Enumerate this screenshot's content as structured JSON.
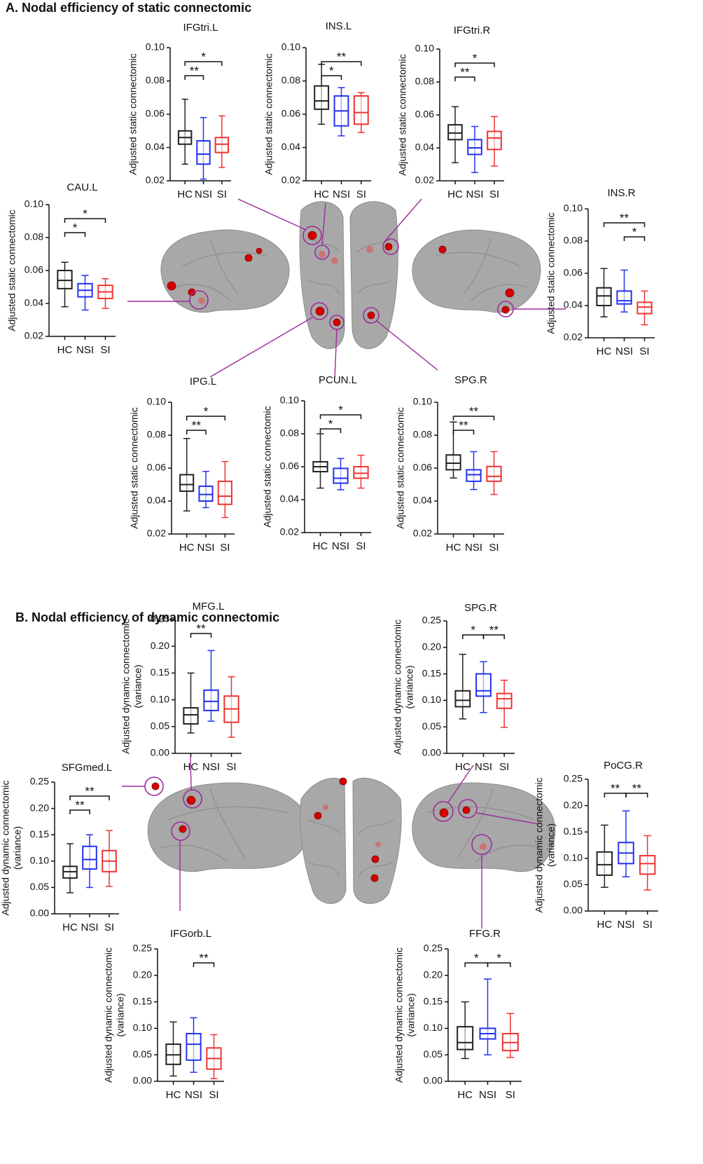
{
  "sections": [
    "A. Nodal efficiency of static connectomic",
    "B. Nodal efficiency of dynamic connectomic"
  ],
  "chart_data": [
    {
      "type": "box",
      "title": "IFGtri.L",
      "ylabel": [
        "Adjusted static connectomic"
      ],
      "categories": [
        "HC",
        "NSI",
        "SI"
      ],
      "colors": [
        "#222222",
        "#2233ee",
        "#ee3333"
      ],
      "boxes": [
        {
          "min": 0.03,
          "q1": 0.042,
          "median": 0.046,
          "q3": 0.05,
          "max": 0.069
        },
        {
          "min": 0.021,
          "q1": 0.03,
          "median": 0.036,
          "q3": 0.044,
          "max": 0.058
        },
        {
          "min": 0.028,
          "q1": 0.037,
          "median": 0.042,
          "q3": 0.046,
          "max": 0.059
        }
      ],
      "ylim": [
        0.02,
        0.1
      ],
      "yticks": [
        0.02,
        0.04,
        0.06,
        0.08,
        {
          "value": 0.1,
          "label": "0.10"
        }
      ],
      "annotations": [
        {
          "groups": [
            0,
            1
          ],
          "label": "**"
        },
        {
          "groups": [
            0,
            2
          ],
          "label": "*"
        }
      ]
    },
    {
      "type": "box",
      "title": "INS.L",
      "ylabel": [
        "Adjusted static connectomic"
      ],
      "categories": [
        "HC",
        "NSI",
        "SI"
      ],
      "colors": [
        "#222222",
        "#2233ee",
        "#ee3333"
      ],
      "boxes": [
        {
          "min": 0.054,
          "q1": 0.063,
          "median": 0.068,
          "q3": 0.077,
          "max": 0.09
        },
        {
          "min": 0.047,
          "q1": 0.053,
          "median": 0.062,
          "q3": 0.071,
          "max": 0.076
        },
        {
          "min": 0.049,
          "q1": 0.054,
          "median": 0.061,
          "q3": 0.071,
          "max": 0.073
        }
      ],
      "ylim": [
        0.02,
        0.1
      ],
      "yticks": [
        0.02,
        0.04,
        0.06,
        0.08,
        {
          "value": 0.1,
          "label": "0.10"
        }
      ],
      "annotations": [
        {
          "groups": [
            0,
            1
          ],
          "label": "*"
        },
        {
          "groups": [
            0,
            2
          ],
          "label": "**"
        }
      ]
    },
    {
      "type": "box",
      "title": "IFGtri.R",
      "ylabel": [
        "Adjusted static connectomic"
      ],
      "categories": [
        "HC",
        "NSI",
        "SI"
      ],
      "colors": [
        "#222222",
        "#2233ee",
        "#ee3333"
      ],
      "boxes": [
        {
          "min": 0.031,
          "q1": 0.045,
          "median": 0.049,
          "q3": 0.054,
          "max": 0.065
        },
        {
          "min": 0.025,
          "q1": 0.036,
          "median": 0.04,
          "q3": 0.045,
          "max": 0.053
        },
        {
          "min": 0.029,
          "q1": 0.039,
          "median": 0.046,
          "q3": 0.05,
          "max": 0.059
        }
      ],
      "ylim": [
        0.02,
        0.1
      ],
      "yticks": [
        0.02,
        0.04,
        0.06,
        0.08,
        {
          "value": 0.1,
          "label": "0.10"
        }
      ],
      "annotations": [
        {
          "groups": [
            0,
            1
          ],
          "label": "**"
        },
        {
          "groups": [
            0,
            2
          ],
          "label": "*"
        }
      ]
    },
    {
      "type": "box",
      "title": "CAU.L",
      "ylabel": [
        "Adjusted static connectomic"
      ],
      "categories": [
        "HC",
        "NSI",
        "SI"
      ],
      "colors": [
        "#222222",
        "#2233ee",
        "#ee3333"
      ],
      "boxes": [
        {
          "min": 0.038,
          "q1": 0.049,
          "median": 0.054,
          "q3": 0.06,
          "max": 0.065
        },
        {
          "min": 0.036,
          "q1": 0.044,
          "median": 0.048,
          "q3": 0.052,
          "max": 0.057
        },
        {
          "min": 0.037,
          "q1": 0.043,
          "median": 0.047,
          "q3": 0.051,
          "max": 0.055
        }
      ],
      "ylim": [
        0.02,
        0.1
      ],
      "yticks": [
        0.02,
        0.04,
        0.06,
        0.08,
        {
          "value": 0.1,
          "label": "0.10"
        }
      ],
      "annotations": [
        {
          "groups": [
            0,
            1
          ],
          "label": "*"
        },
        {
          "groups": [
            0,
            2
          ],
          "label": "*"
        }
      ]
    },
    {
      "type": "box",
      "title": "INS.R",
      "ylabel": [
        "Adjusted static connectomic"
      ],
      "categories": [
        "HC",
        "NSI",
        "SI"
      ],
      "colors": [
        "#222222",
        "#2233ee",
        "#ee3333"
      ],
      "boxes": [
        {
          "min": 0.033,
          "q1": 0.04,
          "median": 0.046,
          "q3": 0.051,
          "max": 0.063
        },
        {
          "min": 0.036,
          "q1": 0.041,
          "median": 0.043,
          "q3": 0.049,
          "max": 0.062
        },
        {
          "min": 0.028,
          "q1": 0.035,
          "median": 0.039,
          "q3": 0.042,
          "max": 0.049
        }
      ],
      "ylim": [
        0.02,
        0.1
      ],
      "yticks": [
        0.02,
        0.04,
        0.06,
        0.08,
        {
          "value": 0.1,
          "label": "0.10"
        }
      ],
      "annotations": [
        {
          "groups": [
            1,
            2
          ],
          "label": "*"
        },
        {
          "groups": [
            0,
            2
          ],
          "label": "**"
        }
      ]
    },
    {
      "type": "box",
      "title": "IPG.L",
      "ylabel": [
        "Adjusted static connectomic"
      ],
      "categories": [
        "HC",
        "NSI",
        "SI"
      ],
      "colors": [
        "#222222",
        "#2233ee",
        "#ee3333"
      ],
      "boxes": [
        {
          "min": 0.034,
          "q1": 0.046,
          "median": 0.05,
          "q3": 0.056,
          "max": 0.078
        },
        {
          "min": 0.036,
          "q1": 0.04,
          "median": 0.044,
          "q3": 0.049,
          "max": 0.058
        },
        {
          "min": 0.03,
          "q1": 0.038,
          "median": 0.043,
          "q3": 0.052,
          "max": 0.064
        }
      ],
      "ylim": [
        0.02,
        0.1
      ],
      "yticks": [
        0.02,
        0.04,
        0.06,
        0.08,
        {
          "value": 0.1,
          "label": "0.10"
        }
      ],
      "annotations": [
        {
          "groups": [
            0,
            1
          ],
          "label": "**"
        },
        {
          "groups": [
            0,
            2
          ],
          "label": "*"
        }
      ]
    },
    {
      "type": "box",
      "title": "PCUN.L",
      "ylabel": [
        "Adjusted static connectomic"
      ],
      "categories": [
        "HC",
        "NSI",
        "SI"
      ],
      "colors": [
        "#222222",
        "#2233ee",
        "#ee3333"
      ],
      "boxes": [
        {
          "min": 0.047,
          "q1": 0.057,
          "median": 0.06,
          "q3": 0.063,
          "max": 0.08
        },
        {
          "min": 0.046,
          "q1": 0.05,
          "median": 0.053,
          "q3": 0.059,
          "max": 0.065
        },
        {
          "min": 0.047,
          "q1": 0.053,
          "median": 0.056,
          "q3": 0.06,
          "max": 0.067
        }
      ],
      "ylim": [
        0.02,
        0.1
      ],
      "yticks": [
        0.02,
        0.04,
        0.06,
        0.08,
        {
          "value": 0.1,
          "label": "0.10"
        }
      ],
      "annotations": [
        {
          "groups": [
            0,
            1
          ],
          "label": "*"
        },
        {
          "groups": [
            0,
            2
          ],
          "label": "*"
        }
      ]
    },
    {
      "type": "box",
      "title": "SPG.R",
      "ylabel": [
        "Adjusted static connectomic"
      ],
      "categories": [
        "HC",
        "NSI",
        "SI"
      ],
      "colors": [
        "#222222",
        "#2233ee",
        "#ee3333"
      ],
      "boxes": [
        {
          "min": 0.054,
          "q1": 0.059,
          "median": 0.063,
          "q3": 0.068,
          "max": 0.088
        },
        {
          "min": 0.047,
          "q1": 0.052,
          "median": 0.056,
          "q3": 0.059,
          "max": 0.07
        },
        {
          "min": 0.044,
          "q1": 0.052,
          "median": 0.055,
          "q3": 0.061,
          "max": 0.07
        }
      ],
      "ylim": [
        0.02,
        0.1
      ],
      "yticks": [
        0.02,
        0.04,
        0.06,
        0.08,
        {
          "value": 0.1,
          "label": "0.10"
        }
      ],
      "annotations": [
        {
          "groups": [
            0,
            1
          ],
          "label": "**"
        },
        {
          "groups": [
            0,
            2
          ],
          "label": "**"
        }
      ]
    },
    {
      "type": "box",
      "title": "MFG.L",
      "ylabel": [
        "Adjusted dynamic connectomic",
        "(variance)"
      ],
      "categories": [
        "HC",
        "NSI",
        "SI"
      ],
      "colors": [
        "#222222",
        "#2233ee",
        "#ee3333"
      ],
      "boxes": [
        {
          "min": 0.038,
          "q1": 0.055,
          "median": 0.072,
          "q3": 0.085,
          "max": 0.15
        },
        {
          "min": 0.06,
          "q1": 0.08,
          "median": 0.097,
          "q3": 0.118,
          "max": 0.192
        },
        {
          "min": 0.03,
          "q1": 0.058,
          "median": 0.083,
          "q3": 0.107,
          "max": 0.143
        }
      ],
      "ylim": [
        0,
        0.25
      ],
      "yticks": [
        {
          "value": 0,
          "label": "0.00"
        },
        0.05,
        {
          "value": 0.1,
          "label": "0.10"
        },
        0.15,
        {
          "value": 0.2,
          "label": "0.20"
        },
        0.25
      ],
      "annotations": [
        {
          "groups": [
            0,
            1
          ],
          "label": "**"
        }
      ]
    },
    {
      "type": "box",
      "title": "SPG.R",
      "ylabel": [
        "Adjusted dynamic connectomic",
        "(variance)"
      ],
      "categories": [
        "HC",
        "NSI",
        "SI"
      ],
      "colors": [
        "#222222",
        "#2233ee",
        "#ee3333"
      ],
      "boxes": [
        {
          "min": 0.065,
          "q1": 0.088,
          "median": 0.1,
          "q3": 0.118,
          "max": 0.187
        },
        {
          "min": 0.077,
          "q1": 0.108,
          "median": 0.118,
          "q3": 0.15,
          "max": 0.173
        },
        {
          "min": 0.049,
          "q1": 0.085,
          "median": 0.103,
          "q3": 0.113,
          "max": 0.138
        }
      ],
      "ylim": [
        0,
        0.25
      ],
      "yticks": [
        {
          "value": 0,
          "label": "0.00"
        },
        0.05,
        {
          "value": 0.1,
          "label": "0.10"
        },
        0.15,
        {
          "value": 0.2,
          "label": "0.20"
        },
        0.25
      ],
      "annotations": [
        {
          "groups": [
            0,
            1
          ],
          "label": "*"
        },
        {
          "groups": [
            1,
            2
          ],
          "label": "**"
        }
      ]
    },
    {
      "type": "box",
      "title": "SFGmed.L",
      "ylabel": [
        "Adjusted dynamic connectomic",
        "(variance)"
      ],
      "categories": [
        "HC",
        "NSI",
        "SI"
      ],
      "colors": [
        "#222222",
        "#2233ee",
        "#ee3333"
      ],
      "boxes": [
        {
          "min": 0.04,
          "q1": 0.068,
          "median": 0.08,
          "q3": 0.09,
          "max": 0.133
        },
        {
          "min": 0.05,
          "q1": 0.085,
          "median": 0.103,
          "q3": 0.128,
          "max": 0.15
        },
        {
          "min": 0.052,
          "q1": 0.08,
          "median": 0.1,
          "q3": 0.12,
          "max": 0.158
        }
      ],
      "ylim": [
        0,
        0.25
      ],
      "yticks": [
        {
          "value": 0,
          "label": "0.00"
        },
        0.05,
        {
          "value": 0.1,
          "label": "0.10"
        },
        0.15,
        {
          "value": 0.2,
          "label": "0.20"
        },
        0.25
      ],
      "annotations": [
        {
          "groups": [
            0,
            1
          ],
          "label": "**"
        },
        {
          "groups": [
            0,
            2
          ],
          "label": "**"
        }
      ]
    },
    {
      "type": "box",
      "title": "PoCG.R",
      "ylabel": [
        "Adjusted dynamic connectomic",
        "(variance)"
      ],
      "categories": [
        "HC",
        "NSI",
        "SI"
      ],
      "colors": [
        "#222222",
        "#2233ee",
        "#ee3333"
      ],
      "boxes": [
        {
          "min": 0.045,
          "q1": 0.068,
          "median": 0.088,
          "q3": 0.112,
          "max": 0.163
        },
        {
          "min": 0.065,
          "q1": 0.09,
          "median": 0.11,
          "q3": 0.13,
          "max": 0.19
        },
        {
          "min": 0.04,
          "q1": 0.07,
          "median": 0.09,
          "q3": 0.105,
          "max": 0.143
        }
      ],
      "ylim": [
        0,
        0.25
      ],
      "yticks": [
        {
          "value": 0,
          "label": "0.00"
        },
        0.05,
        {
          "value": 0.1,
          "label": "0.10"
        },
        0.15,
        {
          "value": 0.2,
          "label": "0.20"
        },
        0.25
      ],
      "annotations": [
        {
          "groups": [
            0,
            1
          ],
          "label": "**"
        },
        {
          "groups": [
            1,
            2
          ],
          "label": "**"
        }
      ]
    },
    {
      "type": "box",
      "title": "IFGorb.L",
      "ylabel": [
        "Adjusted dynamic connectomic",
        "(variance)"
      ],
      "categories": [
        "HC",
        "NSI",
        "SI"
      ],
      "colors": [
        "#222222",
        "#2233ee",
        "#ee3333"
      ],
      "boxes": [
        {
          "min": 0.01,
          "q1": 0.032,
          "median": 0.05,
          "q3": 0.07,
          "max": 0.112
        },
        {
          "min": 0.017,
          "q1": 0.04,
          "median": 0.07,
          "q3": 0.09,
          "max": 0.12
        },
        {
          "min": 0.005,
          "q1": 0.023,
          "median": 0.043,
          "q3": 0.063,
          "max": 0.088
        }
      ],
      "ylim": [
        0,
        0.25
      ],
      "yticks": [
        {
          "value": 0,
          "label": "0.00"
        },
        0.05,
        {
          "value": 0.1,
          "label": "0.10"
        },
        0.15,
        {
          "value": 0.2,
          "label": "0.20"
        },
        0.25
      ],
      "annotations": [
        {
          "groups": [
            1,
            2
          ],
          "label": "**"
        }
      ]
    },
    {
      "type": "box",
      "title": "FFG.R",
      "ylabel": [
        "Adjusted dynamic connectomic",
        "(variance)"
      ],
      "categories": [
        "HC",
        "NSI",
        "SI"
      ],
      "colors": [
        "#222222",
        "#2233ee",
        "#ee3333"
      ],
      "boxes": [
        {
          "min": 0.043,
          "q1": 0.06,
          "median": 0.073,
          "q3": 0.103,
          "max": 0.15
        },
        {
          "min": 0.05,
          "q1": 0.08,
          "median": 0.09,
          "q3": 0.1,
          "max": 0.193
        },
        {
          "min": 0.045,
          "q1": 0.058,
          "median": 0.073,
          "q3": 0.09,
          "max": 0.128
        }
      ],
      "ylim": [
        0,
        0.25
      ],
      "yticks": [
        {
          "value": 0,
          "label": "0.00"
        },
        0.05,
        {
          "value": 0.1,
          "label": "0.10"
        },
        0.15,
        {
          "value": 0.2,
          "label": "0.20"
        },
        0.25
      ],
      "annotations": [
        {
          "groups": [
            0,
            1
          ],
          "label": "*"
        },
        {
          "groups": [
            1,
            2
          ],
          "label": "*"
        }
      ]
    }
  ]
}
